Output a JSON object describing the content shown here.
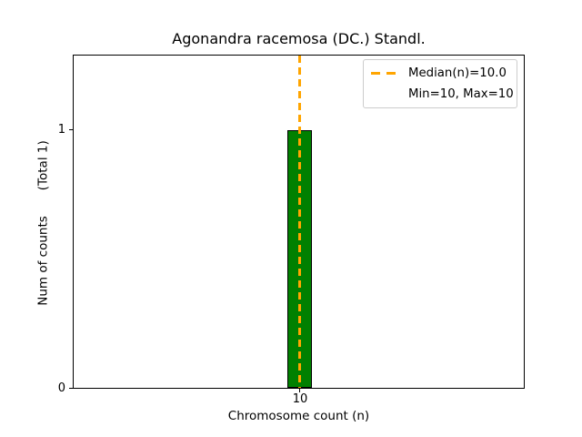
{
  "figure": {
    "title": "Agonandra racemosa (DC.) Standl.",
    "xlabel": "Chromosome count (n)",
    "ylabel_main": "Num of counts",
    "ylabel_total": "(Total 1)",
    "yticks": {
      "one": "1",
      "zero": "0"
    },
    "xtick": "10",
    "legend": {
      "median_label": "Median(n)=10.0",
      "minmax_label": "Min=10, Max=10"
    },
    "colors": {
      "bar_fill": "#008000",
      "bar_edge": "#000000",
      "median_line": "#FFA500",
      "legend_border": "#cccccc",
      "background": "#ffffff",
      "text": "#000000"
    }
  },
  "chart_data": {
    "type": "bar",
    "title": "Agonandra racemosa (DC.) Standl.",
    "xlabel": "Chromosome count (n)",
    "ylabel": "Num of counts      (Total 1)",
    "categories": [
      "10"
    ],
    "x": [
      10
    ],
    "values": [
      1
    ],
    "bar_color": "#008000",
    "bar_edge_color": "#000000",
    "xticks": [
      10
    ],
    "yticks": [
      0,
      1
    ],
    "ylim": [
      0,
      1.29
    ],
    "grid": false,
    "legend_position": "upper right",
    "legend_entries": [
      "Median(n)=10.0",
      "Min=10, Max=10"
    ],
    "annotations": [
      {
        "type": "vline",
        "x": 10,
        "style": "dashed",
        "color": "#FFA500",
        "label": "Median(n)=10.0"
      }
    ],
    "stats": {
      "median_n": 10.0,
      "min_n": 10,
      "max_n": 10,
      "total_counts": 1
    }
  }
}
